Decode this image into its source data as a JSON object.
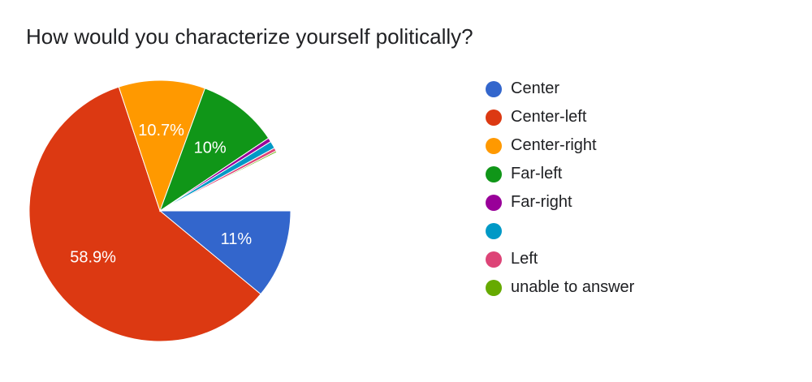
{
  "chart_data": {
    "type": "pie",
    "title": "How would you characterize yourself politically?",
    "slices": [
      {
        "name": "Center",
        "value": 11.0,
        "label": "11%",
        "color": "#3366cc"
      },
      {
        "name": "Center-left",
        "value": 58.9,
        "label": "58.9%",
        "color": "#dc3912"
      },
      {
        "name": "Center-right",
        "value": 10.7,
        "label": "10.7%",
        "color": "#ff9900"
      },
      {
        "name": "Far-left",
        "value": 10.0,
        "label": "10%",
        "color": "#109618"
      },
      {
        "name": "Far-right",
        "value": 0.5,
        "label": "",
        "color": "#990099"
      },
      {
        "name": "",
        "value": 0.9,
        "label": "",
        "color": "#0099c6"
      },
      {
        "name": "Left",
        "value": 0.4,
        "label": "",
        "color": "#dd4477"
      },
      {
        "name": "unable to answer",
        "value": 0.2,
        "label": "",
        "color": "#66aa00"
      },
      {
        "name": "",
        "value": 7.4,
        "label": "",
        "color": "#ffffff"
      }
    ],
    "legend": {
      "position": "right",
      "items": [
        {
          "label": "Center",
          "color": "#3366cc"
        },
        {
          "label": "Center-left",
          "color": "#dc3912"
        },
        {
          "label": "Center-right",
          "color": "#ff9900"
        },
        {
          "label": "Far-left",
          "color": "#109618"
        },
        {
          "label": "Far-right",
          "color": "#990099"
        },
        {
          "label": "",
          "color": "#0099c6"
        },
        {
          "label": "Left",
          "color": "#dd4477"
        },
        {
          "label": "unable to answer",
          "color": "#66aa00"
        }
      ]
    }
  }
}
